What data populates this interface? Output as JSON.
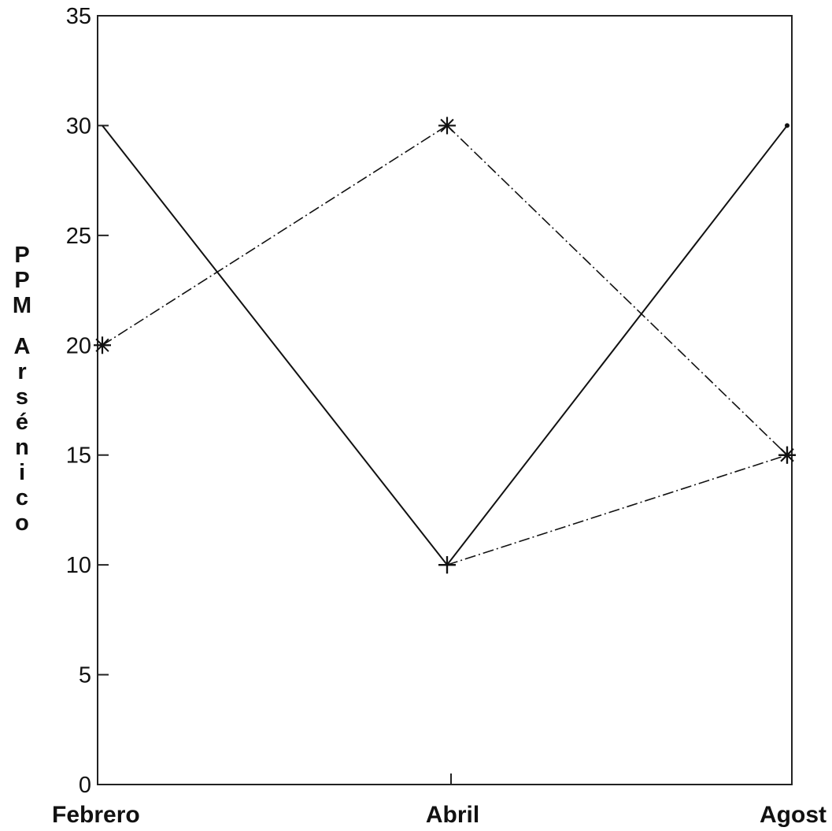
{
  "chart_data": {
    "type": "line",
    "title": "",
    "xlabel": "",
    "ylabel": "PPM Arsénico",
    "categories": [
      "Febrero",
      "Abril",
      "Agost"
    ],
    "ylim": [
      0,
      35
    ],
    "yticks": [
      "0",
      "5",
      "10",
      "15",
      "20",
      "25",
      "30",
      "35"
    ],
    "grid": false,
    "series": [
      {
        "values": [
          30,
          10,
          30
        ],
        "line_style": "solid",
        "marker": [
          "none",
          "plus",
          "dot"
        ]
      },
      {
        "values": [
          20,
          30,
          15
        ],
        "line_style": "dash-dot",
        "marker": [
          "asterisk",
          "asterisk",
          "asterisk"
        ]
      },
      {
        "values": [
          null,
          10,
          15
        ],
        "line_style": "dash-dot",
        "marker": [
          "none",
          "plus",
          "asterisk"
        ]
      }
    ]
  }
}
